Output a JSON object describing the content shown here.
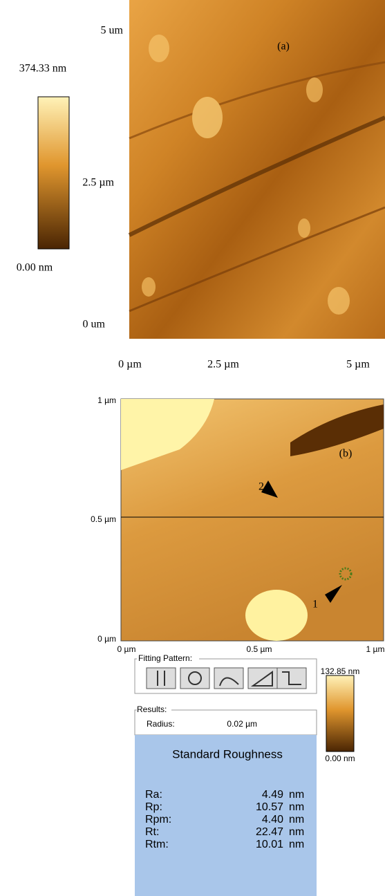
{
  "panel_a": {
    "label": "(a)",
    "colorbar": {
      "max": "374.33 nm",
      "min": "0.00 nm"
    },
    "y_labels": [
      "5 um",
      "2.5 µm",
      "0 um"
    ],
    "x_labels": [
      "0 µm",
      "2.5 µm",
      "5 µm"
    ]
  },
  "panel_b": {
    "label": "(b)",
    "markers": [
      "2",
      "1"
    ],
    "y_labels": [
      "1 µm",
      "0.5 µm",
      "0 µm"
    ],
    "x_labels": [
      "0 µm",
      "0.5 µm",
      "1 µm"
    ],
    "fitting_pattern": "Fitting Pattern:",
    "results": "Results:",
    "radius": {
      "label": "Radius:",
      "value": "0.02 µm"
    },
    "colorbar": {
      "max": "132.85 nm",
      "min": "0.00 nm"
    },
    "roughness": {
      "title": "Standard Roughness",
      "rows": [
        [
          "Ra:",
          "4.49",
          "nm"
        ],
        [
          "Rp:",
          "10.57",
          "nm"
        ],
        [
          "Rpm:",
          "4.40",
          "nm"
        ],
        [
          "Rt:",
          "22.47",
          "nm"
        ],
        [
          "Rtm:",
          "10.01",
          "nm"
        ]
      ]
    }
  }
}
